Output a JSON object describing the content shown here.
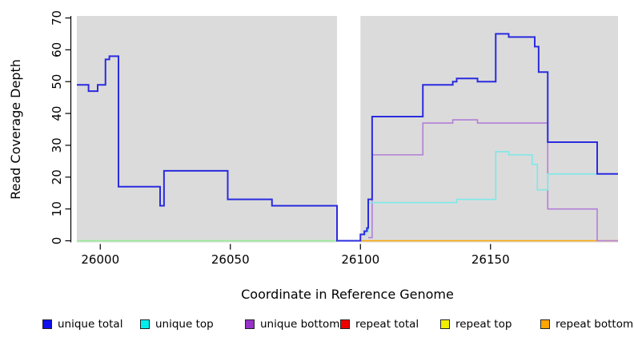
{
  "chart_data": {
    "type": "line",
    "subtype": "step",
    "title": "",
    "xlabel": "Coordinate in Reference Genome",
    "ylabel": "Read Coverage Depth",
    "xlim": [
      25991,
      26199
    ],
    "ylim": [
      0,
      70
    ],
    "x_ticks": [
      "26000",
      "26050",
      "26100",
      "26150"
    ],
    "x_tick_values": [
      26000,
      26050,
      26100,
      26150
    ],
    "y_ticks": [
      "0",
      "10",
      "20",
      "30",
      "40",
      "50",
      "60",
      "70"
    ],
    "y_tick_values": [
      0,
      10,
      20,
      30,
      40,
      50,
      60,
      70
    ],
    "grid": false,
    "plot_background": "#DBDBDB",
    "gap_region": {
      "x_from": 26091,
      "x_to": 26100,
      "color": "#FFFFFF"
    },
    "legend_position": "bottom",
    "legend": {
      "entries": [
        {
          "label": "unique total",
          "color": "#1010EE"
        },
        {
          "label": "unique top",
          "color": "#00EEEE"
        },
        {
          "label": "unique bottom",
          "color": "#9632C8"
        },
        {
          "label": "repeat total",
          "color": "#EE0000"
        },
        {
          "label": "repeat top",
          "color": "#F0F000"
        },
        {
          "label": "repeat bottom",
          "color": "#FFA500"
        }
      ]
    },
    "series": [
      {
        "name": "baseline-zero-left",
        "color": "#90EE90",
        "width": 1.4,
        "x_end": 26091,
        "steps": [
          [
            25991,
            0
          ]
        ]
      },
      {
        "name": "repeat total",
        "color": "#EE0000",
        "width": 1.4,
        "x_end": 26199,
        "steps": []
      },
      {
        "name": "repeat top",
        "color": "#F0F000",
        "width": 1.4,
        "x_end": 26199,
        "steps": []
      },
      {
        "name": "repeat bottom",
        "color": "#FFA500",
        "width": 1.6,
        "x_end": 26199,
        "steps": [
          [
            26100,
            0
          ]
        ]
      },
      {
        "name": "unique bottom",
        "color": "#B27FD8",
        "width": 1.6,
        "x_end": 26199,
        "steps": [
          [
            26103,
            1
          ],
          [
            26104.5,
            27
          ],
          [
            26124,
            37
          ],
          [
            26135.5,
            38
          ],
          [
            26145,
            37
          ],
          [
            26172,
            10
          ],
          [
            26191,
            0
          ]
        ]
      },
      {
        "name": "unique top",
        "color": "#7DE8E8",
        "width": 1.6,
        "x_end": 26199,
        "steps": [
          [
            26100,
            2
          ],
          [
            26102,
            3
          ],
          [
            26103,
            12
          ],
          [
            26137,
            13
          ],
          [
            26152,
            28
          ],
          [
            26157,
            27
          ],
          [
            26166,
            24
          ],
          [
            26168,
            16
          ],
          [
            26172,
            21
          ]
        ]
      },
      {
        "name": "unique total",
        "color": "#2B2BE0",
        "width": 2,
        "x_end": 26199,
        "steps": [
          [
            25991,
            49
          ],
          [
            25995.5,
            47
          ],
          [
            25999,
            49
          ],
          [
            26002,
            57
          ],
          [
            26003.5,
            58
          ],
          [
            26007,
            17
          ],
          [
            26023,
            11
          ],
          [
            26024.5,
            22
          ],
          [
            26049,
            13
          ],
          [
            26066,
            11
          ],
          [
            26091,
            0
          ],
          [
            26100,
            2
          ],
          [
            26101.5,
            3
          ],
          [
            26102.5,
            4
          ],
          [
            26103,
            13
          ],
          [
            26104.5,
            39
          ],
          [
            26124,
            49
          ],
          [
            26135.5,
            50
          ],
          [
            26137,
            51
          ],
          [
            26145,
            50
          ],
          [
            26152,
            65
          ],
          [
            26157,
            64
          ],
          [
            26167,
            61
          ],
          [
            26168.5,
            53
          ],
          [
            26172,
            31
          ],
          [
            26191,
            21
          ]
        ]
      }
    ]
  }
}
